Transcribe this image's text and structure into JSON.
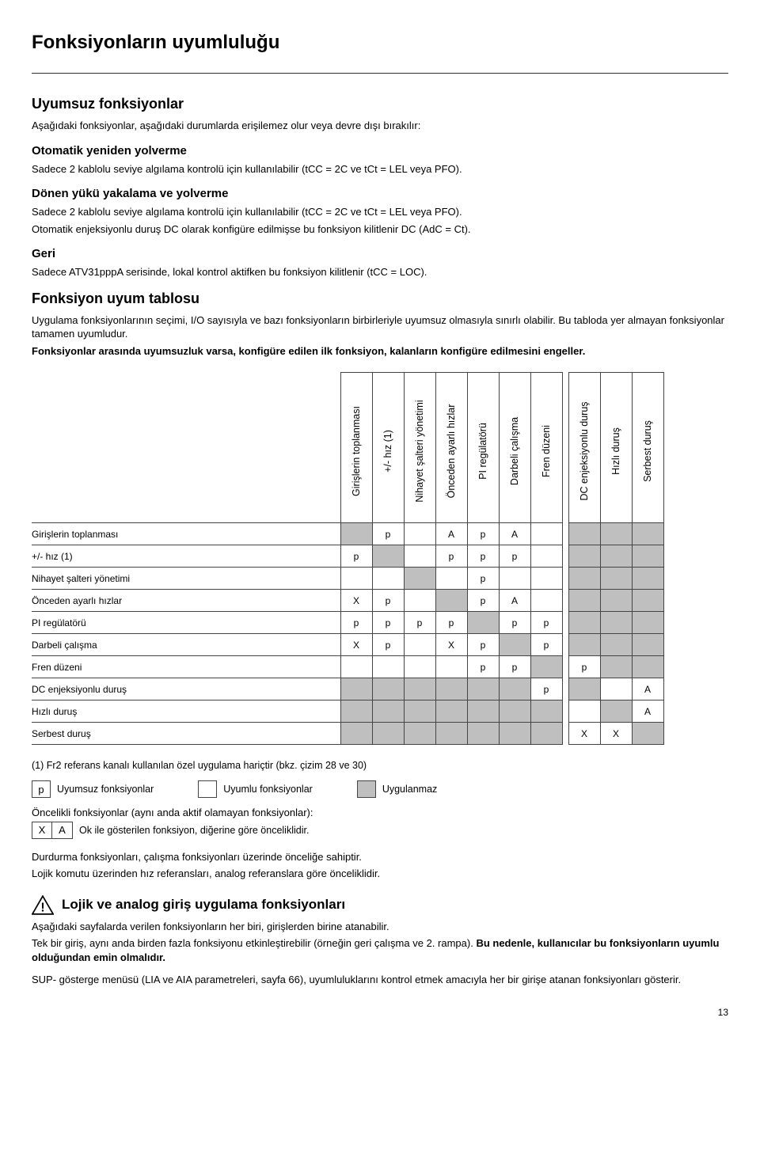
{
  "page_title": "Fonksiyonların uyumluluğu",
  "page_number": "13",
  "h_incompat": "Uyumsuz fonksiyonlar",
  "p_incompat_intro": "Aşağıdaki fonksiyonlar, aşağıdaki durumlarda erişilemez olur veya devre dışı bırakılır:",
  "h_auto_restart": "Otomatik yeniden yolverme",
  "p_auto_restart": "Sadece 2 kablolu seviye algılama kontrolü için kullanılabilir (tCC = 2C ve tCt = LEL veya PFO).",
  "h_flying": "Dönen yükü yakalama ve yolverme",
  "p_flying_1": "Sadece 2 kablolu seviye algılama kontrolü için kullanılabilir (tCC = 2C ve tCt = LEL veya PFO).",
  "p_flying_2": "Otomatik enjeksiyonlu duruş DC olarak konfigüre edilmişse bu fonksiyon kilitlenir DC (AdC = Ct).",
  "h_geri": "Geri",
  "p_geri": "Sadece ATV31pppA serisinde, lokal kontrol aktifken bu fonksiyon kilitlenir (tCC = LOC).",
  "h_table": "Fonksiyon uyum tablosu",
  "p_table_1": "Uygulama fonksiyonlarının seçimi, I/O sayısıyla ve bazı fonksiyonların birbirleriyle uyumsuz olmasıyla sınırlı olabilir. Bu tabloda yer almayan fonksiyonlar tamamen uyumludur.",
  "p_table_2_bold": "Fonksiyonlar arasında uyumsuzluk varsa, konfigüre edilen ilk fonksiyon, kalanların konfigüre edilmesini engeller.",
  "columns": [
    "Girişlerin toplanması",
    "+/- hız (1)",
    "Nihayet şalteri yönetimi",
    "Önceden ayarlı hızlar",
    "PI regülatörü",
    "Darbeli çalışma",
    "Fren düzeni",
    "DC enjeksiyonlu duruş",
    "Hızlı duruş",
    "Serbest duruş"
  ],
  "rows": [
    {
      "label": "Girişlerin toplanması",
      "cells": [
        "self",
        "p",
        "",
        "A",
        "p",
        "A",
        "",
        "na",
        "na",
        "na"
      ]
    },
    {
      "label": "+/- hız (1)",
      "cells": [
        "p",
        "self",
        "",
        "p",
        "p",
        "p",
        "",
        "na",
        "na",
        "na"
      ]
    },
    {
      "label": "Nihayet şalteri yönetimi",
      "cells": [
        "",
        "",
        "self",
        "",
        "p",
        "",
        "",
        "na",
        "na",
        "na"
      ]
    },
    {
      "label": "Önceden ayarlı hızlar",
      "cells": [
        "X",
        "p",
        "",
        "self",
        "p",
        "A",
        "",
        "na",
        "na",
        "na"
      ]
    },
    {
      "label": "PI regülatörü",
      "cells": [
        "p",
        "p",
        "p",
        "p",
        "self",
        "p",
        "p",
        "na",
        "na",
        "na"
      ]
    },
    {
      "label": "Darbeli çalışma",
      "cells": [
        "X",
        "p",
        "",
        "X",
        "p",
        "self",
        "p",
        "na",
        "na",
        "na"
      ]
    },
    {
      "label": "Fren düzeni",
      "cells": [
        "",
        "",
        "",
        "",
        "p",
        "p",
        "self",
        "p",
        "na",
        "na"
      ]
    },
    {
      "label": "DC enjeksiyonlu duruş",
      "cells": [
        "na",
        "na",
        "na",
        "na",
        "na",
        "na",
        "p",
        "self",
        "",
        "A"
      ]
    },
    {
      "label": "Hızlı duruş",
      "cells": [
        "na",
        "na",
        "na",
        "na",
        "na",
        "na",
        "na",
        "",
        "self",
        "A"
      ]
    },
    {
      "label": "Serbest duruş",
      "cells": [
        "na",
        "na",
        "na",
        "na",
        "na",
        "na",
        "na",
        "X",
        "X",
        "self"
      ]
    }
  ],
  "footnote_1": "(1) Fr2 referans kanalı kullanılan özel uygulama hariçtir (bkz. çizim 28 ve 30)",
  "legend_p": "p",
  "legend_incompat": "Uyumsuz fonksiyonlar",
  "legend_compat": "Uyumlu fonksiyonlar",
  "legend_na": "Uygulanmaz",
  "priority_intro": "Öncelikli fonksiyonlar (aynı anda aktif olamayan fonksiyonlar):",
  "legend_X": "X",
  "legend_A": "A",
  "priority_desc": "Ok ile gösterilen fonksiyon, diğerine göre önceliklidir.",
  "p_stop_priority_1": "Durdurma fonksiyonları, çalışma fonksiyonları üzerinde önceliğe sahiptir.",
  "p_stop_priority_2": "Lojik komutu üzerinden hız referansları, analog referanslara göre önceliklidir.",
  "h_logic": "Lojik ve analog giriş uygulama fonksiyonları",
  "p_logic_1_a": "Aşağıdaki sayfalarda verilen fonksiyonların her biri, girişlerden birine atanabilir.",
  "p_logic_2_a": "Tek bir giriş, aynı anda birden fazla fonksiyonu etkinleştirebilir (örneğin geri çalışma ve 2. rampa). ",
  "p_logic_2_b_bold": "Bu nedenle, kullanıcılar bu fonksiyonların uyumlu olduğundan emin olmalıdır.",
  "p_logic_3": "SUP- gösterge menüsü (LIA ve AIA parametreleri, sayfa 66), uyumluluklarını kontrol etmek amacıyla her bir girişe atanan fonksiyonları gösterir."
}
